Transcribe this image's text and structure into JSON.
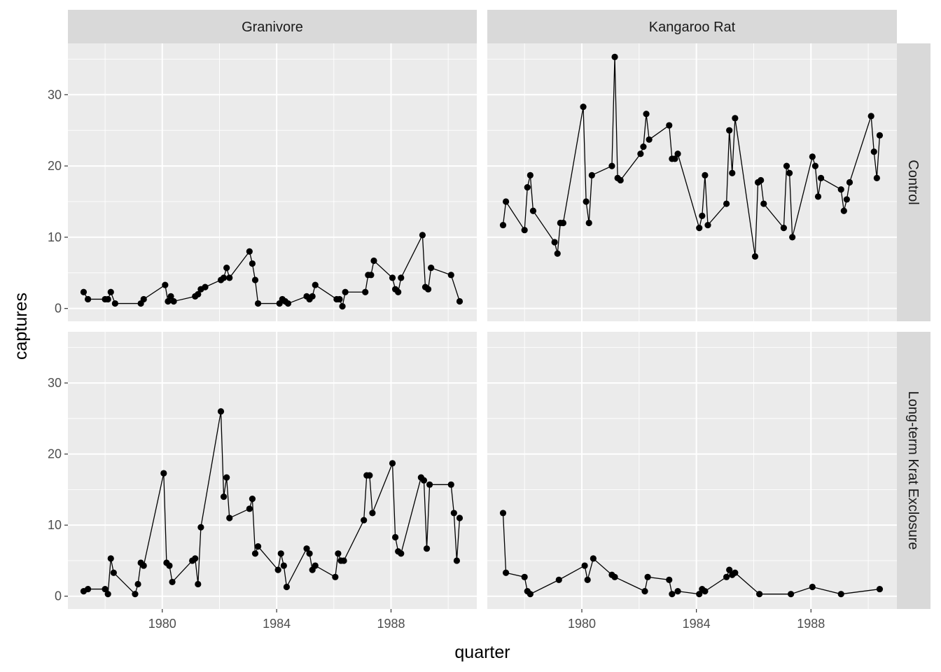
{
  "chart_data": {
    "type": "line",
    "facet_columns": [
      "Granivore",
      "Kangaroo Rat"
    ],
    "facet_rows": [
      "Control",
      "Long-term Krat Exclosure"
    ],
    "xlabel": "quarter",
    "ylabel": "captures",
    "xlim": [
      1976.7,
      1991.0
    ],
    "ylim": [
      -1.8,
      37.2
    ],
    "x_ticks": [
      1980,
      1984,
      1988
    ],
    "x_tick_labels": [
      "1980",
      "1984",
      "1988"
    ],
    "y_ticks": [
      0,
      10,
      20,
      30
    ],
    "y_tick_labels": [
      "0",
      "10",
      "20",
      "30"
    ],
    "grid": true,
    "legend": "none",
    "colors": {
      "panel": "#ebebeb",
      "strip": "#d9d9d9",
      "grid": "#ffffff",
      "line": "#000000",
      "point": "#000000"
    },
    "panels": [
      {
        "column": "Granivore",
        "row": "Control",
        "points": [
          [
            1977.25,
            2.3
          ],
          [
            1977.4,
            1.3
          ],
          [
            1978.0,
            1.3
          ],
          [
            1978.1,
            1.3
          ],
          [
            1978.2,
            2.3
          ],
          [
            1978.35,
            0.7
          ],
          [
            1979.25,
            0.7
          ],
          [
            1979.35,
            1.3
          ],
          [
            1980.1,
            3.3
          ],
          [
            1980.2,
            1.0
          ],
          [
            1980.3,
            1.7
          ],
          [
            1980.4,
            1.0
          ],
          [
            1981.15,
            1.7
          ],
          [
            1981.25,
            2.0
          ],
          [
            1981.35,
            2.7
          ],
          [
            1981.5,
            3.0
          ],
          [
            1982.05,
            4.0
          ],
          [
            1982.15,
            4.3
          ],
          [
            1982.25,
            5.7
          ],
          [
            1982.35,
            4.3
          ],
          [
            1983.05,
            8.0
          ],
          [
            1983.15,
            6.3
          ],
          [
            1983.25,
            4.0
          ],
          [
            1983.35,
            0.7
          ],
          [
            1984.1,
            0.7
          ],
          [
            1984.2,
            1.3
          ],
          [
            1984.3,
            1.0
          ],
          [
            1984.4,
            0.7
          ],
          [
            1985.05,
            1.7
          ],
          [
            1985.15,
            1.3
          ],
          [
            1985.25,
            1.7
          ],
          [
            1985.35,
            3.3
          ],
          [
            1986.1,
            1.3
          ],
          [
            1986.2,
            1.3
          ],
          [
            1986.3,
            0.3
          ],
          [
            1986.4,
            2.3
          ],
          [
            1987.1,
            2.3
          ],
          [
            1987.2,
            4.7
          ],
          [
            1987.3,
            4.7
          ],
          [
            1987.4,
            6.7
          ],
          [
            1988.05,
            4.3
          ],
          [
            1988.15,
            2.7
          ],
          [
            1988.25,
            2.3
          ],
          [
            1988.35,
            4.3
          ],
          [
            1989.1,
            10.3
          ],
          [
            1989.2,
            3.0
          ],
          [
            1989.3,
            2.7
          ],
          [
            1989.4,
            5.7
          ],
          [
            1990.1,
            4.7
          ],
          [
            1990.4,
            1.0
          ]
        ]
      },
      {
        "column": "Kangaroo Rat",
        "row": "Control",
        "points": [
          [
            1977.25,
            11.7
          ],
          [
            1977.35,
            15.0
          ],
          [
            1978.0,
            11.0
          ],
          [
            1978.1,
            17.0
          ],
          [
            1978.2,
            18.7
          ],
          [
            1978.3,
            13.7
          ],
          [
            1979.05,
            9.3
          ],
          [
            1979.15,
            7.7
          ],
          [
            1979.25,
            12.0
          ],
          [
            1979.35,
            12.0
          ],
          [
            1980.05,
            28.3
          ],
          [
            1980.15,
            15.0
          ],
          [
            1980.25,
            12.0
          ],
          [
            1980.35,
            18.7
          ],
          [
            1981.05,
            20.0
          ],
          [
            1981.15,
            35.3
          ],
          [
            1981.25,
            18.3
          ],
          [
            1981.35,
            18.0
          ],
          [
            1982.05,
            21.7
          ],
          [
            1982.15,
            22.7
          ],
          [
            1982.25,
            27.3
          ],
          [
            1982.35,
            23.7
          ],
          [
            1983.05,
            25.7
          ],
          [
            1983.15,
            21.0
          ],
          [
            1983.25,
            21.0
          ],
          [
            1983.35,
            21.7
          ],
          [
            1984.1,
            11.3
          ],
          [
            1984.2,
            13.0
          ],
          [
            1984.3,
            18.7
          ],
          [
            1984.4,
            11.7
          ],
          [
            1985.05,
            14.7
          ],
          [
            1985.15,
            25.0
          ],
          [
            1985.25,
            19.0
          ],
          [
            1985.35,
            26.7
          ],
          [
            1986.05,
            7.3
          ],
          [
            1986.15,
            17.7
          ],
          [
            1986.25,
            18.0
          ],
          [
            1986.35,
            14.7
          ],
          [
            1987.05,
            11.3
          ],
          [
            1987.15,
            20.0
          ],
          [
            1987.25,
            19.0
          ],
          [
            1987.35,
            10.0
          ],
          [
            1988.05,
            21.3
          ],
          [
            1988.15,
            20.0
          ],
          [
            1988.25,
            15.7
          ],
          [
            1988.35,
            18.3
          ],
          [
            1989.05,
            16.7
          ],
          [
            1989.15,
            13.7
          ],
          [
            1989.25,
            15.3
          ],
          [
            1989.35,
            17.7
          ],
          [
            1990.1,
            27.0
          ],
          [
            1990.2,
            22.0
          ],
          [
            1990.3,
            18.3
          ],
          [
            1990.4,
            24.3
          ]
        ]
      },
      {
        "column": "Granivore",
        "row": "Long-term Krat Exclosure",
        "points": [
          [
            1977.25,
            0.7
          ],
          [
            1977.4,
            1.0
          ],
          [
            1978.0,
            1.0
          ],
          [
            1978.1,
            0.3
          ],
          [
            1978.2,
            5.3
          ],
          [
            1978.3,
            3.3
          ],
          [
            1979.05,
            0.3
          ],
          [
            1979.15,
            1.7
          ],
          [
            1979.25,
            4.7
          ],
          [
            1979.35,
            4.3
          ],
          [
            1980.05,
            17.3
          ],
          [
            1980.15,
            4.7
          ],
          [
            1980.25,
            4.3
          ],
          [
            1980.35,
            2.0
          ],
          [
            1981.05,
            5.0
          ],
          [
            1981.15,
            5.3
          ],
          [
            1981.25,
            1.7
          ],
          [
            1981.35,
            9.7
          ],
          [
            1982.05,
            26.0
          ],
          [
            1982.15,
            14.0
          ],
          [
            1982.25,
            16.7
          ],
          [
            1982.35,
            11.0
          ],
          [
            1983.05,
            12.3
          ],
          [
            1983.15,
            13.7
          ],
          [
            1983.25,
            6.0
          ],
          [
            1983.35,
            7.0
          ],
          [
            1984.05,
            3.7
          ],
          [
            1984.15,
            6.0
          ],
          [
            1984.25,
            4.3
          ],
          [
            1984.35,
            1.3
          ],
          [
            1985.05,
            6.7
          ],
          [
            1985.15,
            6.0
          ],
          [
            1985.25,
            3.7
          ],
          [
            1985.35,
            4.3
          ],
          [
            1986.05,
            2.7
          ],
          [
            1986.15,
            6.0
          ],
          [
            1986.25,
            5.0
          ],
          [
            1986.35,
            5.0
          ],
          [
            1987.05,
            10.7
          ],
          [
            1987.15,
            17.0
          ],
          [
            1987.25,
            17.0
          ],
          [
            1987.35,
            11.7
          ],
          [
            1988.05,
            18.7
          ],
          [
            1988.15,
            8.3
          ],
          [
            1988.25,
            6.3
          ],
          [
            1988.35,
            6.0
          ],
          [
            1989.05,
            16.7
          ],
          [
            1989.15,
            16.3
          ],
          [
            1989.25,
            6.7
          ],
          [
            1989.35,
            15.7
          ],
          [
            1990.1,
            15.7
          ],
          [
            1990.2,
            11.7
          ],
          [
            1990.3,
            5.0
          ],
          [
            1990.4,
            11.0
          ]
        ]
      },
      {
        "column": "Kangaroo Rat",
        "row": "Long-term Krat Exclosure",
        "points": [
          [
            1977.25,
            11.7
          ],
          [
            1977.35,
            3.3
          ],
          [
            1978.0,
            2.7
          ],
          [
            1978.1,
            0.7
          ],
          [
            1978.2,
            0.3
          ],
          [
            1979.2,
            2.3
          ],
          [
            1980.1,
            4.3
          ],
          [
            1980.2,
            2.3
          ],
          [
            1980.4,
            5.3
          ],
          [
            1981.05,
            3.0
          ],
          [
            1981.15,
            2.7
          ],
          [
            1982.2,
            0.7
          ],
          [
            1982.3,
            2.7
          ],
          [
            1983.05,
            2.3
          ],
          [
            1983.15,
            0.3
          ],
          [
            1983.35,
            0.7
          ],
          [
            1984.1,
            0.3
          ],
          [
            1984.2,
            1.0
          ],
          [
            1984.3,
            0.7
          ],
          [
            1985.05,
            2.7
          ],
          [
            1985.15,
            3.7
          ],
          [
            1985.25,
            3.0
          ],
          [
            1985.35,
            3.3
          ],
          [
            1986.2,
            0.3
          ],
          [
            1987.3,
            0.3
          ],
          [
            1988.05,
            1.3
          ],
          [
            1989.05,
            0.3
          ],
          [
            1990.4,
            1.0
          ]
        ]
      }
    ]
  }
}
